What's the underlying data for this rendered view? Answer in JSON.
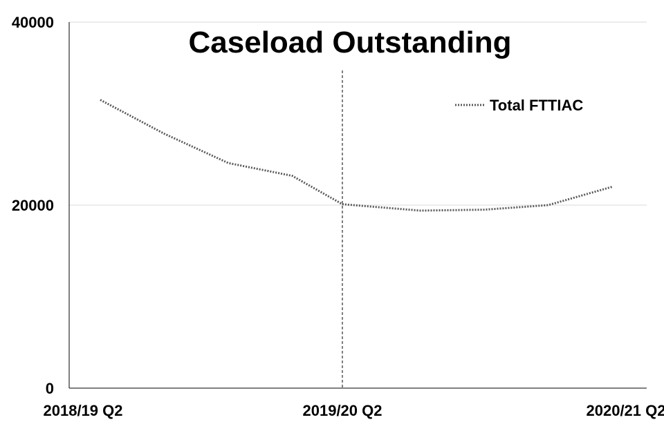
{
  "chart_data": {
    "type": "line",
    "title": "Caseload Outstanding",
    "xlabel": "",
    "ylabel": "",
    "categories": [
      "2018/19 Q2",
      "",
      "",
      "",
      "2019/20 Q2",
      "",
      "",
      "",
      "2020/21 Q2"
    ],
    "x_tick_labels": [
      "2018/19 Q2",
      "2019/20 Q2",
      "2020/21 Q2"
    ],
    "y_ticks": [
      0,
      20000,
      40000
    ],
    "ylim": [
      0,
      40000
    ],
    "grid": true,
    "legend_position": "top-right",
    "marker_line_category": "2019/20 Q2",
    "series": [
      {
        "name": "Total FTTIAC",
        "values": [
          31500,
          27800,
          24600,
          23200,
          20100,
          19400,
          19500,
          20000,
          22000
        ],
        "color": "#595959",
        "style": "dotted"
      }
    ]
  }
}
